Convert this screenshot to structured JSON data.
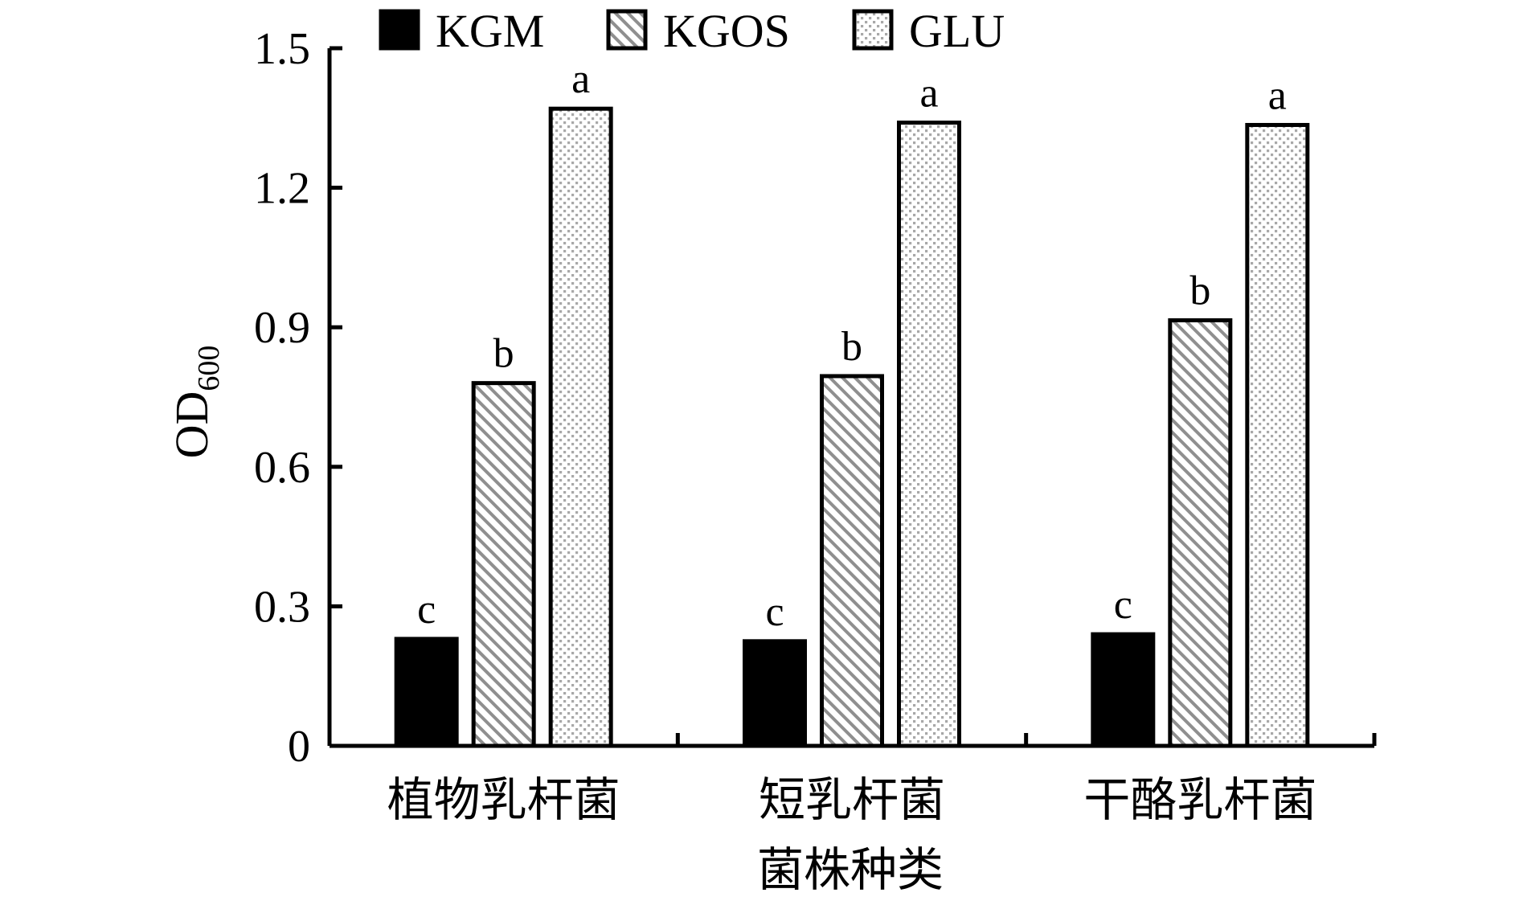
{
  "chart_data": {
    "type": "bar",
    "categories": [
      "植物乳杆菌",
      "短乳杆菌",
      "干酪乳杆菌"
    ],
    "series": [
      {
        "name": "KGM",
        "values": [
          0.23,
          0.225,
          0.24
        ],
        "labels": [
          "c",
          "c",
          "c"
        ],
        "pattern": "solid"
      },
      {
        "name": "KGOS",
        "values": [
          0.78,
          0.795,
          0.915
        ],
        "labels": [
          "b",
          "b",
          "b"
        ],
        "pattern": "hatch"
      },
      {
        "name": "GLU",
        "values": [
          1.37,
          1.34,
          1.335
        ],
        "labels": [
          "a",
          "a",
          "a"
        ],
        "pattern": "dots"
      }
    ],
    "ylabel_main": "OD",
    "ylabel_sub": "600",
    "xlabel": "菌株种类",
    "ylim": [
      0,
      1.5
    ],
    "yticks": [
      "0",
      "0.3",
      "0.6",
      "0.9",
      "1.2",
      "1.5"
    ],
    "ytick_values": [
      0,
      0.3,
      0.6,
      0.9,
      1.2,
      1.5
    ],
    "grid": false,
    "legend_position": "top"
  },
  "colors": {
    "ink": "#000000",
    "background": "#ffffff",
    "pattern_fill": "#9a9a9a"
  }
}
